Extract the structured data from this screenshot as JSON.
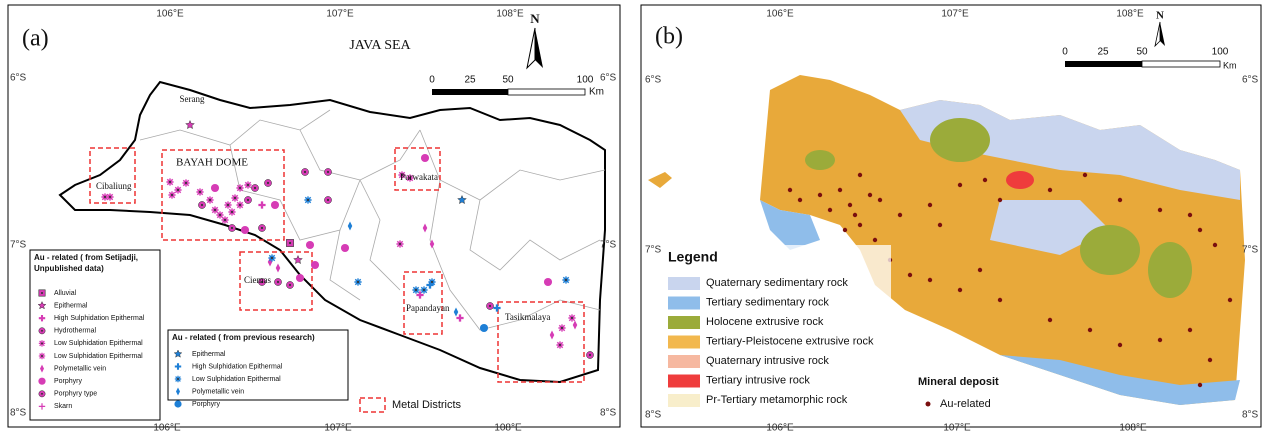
{
  "panel_a": {
    "label": "(a)",
    "sea_label": "JAVA SEA",
    "north": "N",
    "scale": {
      "ticks": [
        "0",
        "25",
        "50",
        "100"
      ],
      "unit": "Km"
    },
    "lon_top": [
      "106°E",
      "107°E",
      "108°E"
    ],
    "lon_bottom": [
      "106°E",
      "107°E",
      "108°E"
    ],
    "lat_left": [
      "6°S",
      "7°S",
      "8°S"
    ],
    "lat_right": [
      "6°S",
      "7°S",
      "8°S"
    ],
    "places": [
      "Serang",
      "BAYAH DOME",
      "Cibaliung",
      "Ciemas",
      "Purwakata",
      "Papandayan",
      "Tasikmalaya"
    ],
    "legend_setijadji": {
      "title": [
        "Au - related ( from Setijadji,",
        "Unpublished data)"
      ],
      "items": [
        "Alluvial",
        "Epithermal",
        "High Sulphidation Epithermal",
        "Hydrothermal",
        "Low Sulphidation Epithermal",
        "Low Sulphidation Epithermal",
        "Polymetallic vein",
        "Porphyry",
        "Porphyry type",
        "Skarn"
      ]
    },
    "legend_previous": {
      "title": "Au - related ( from previous research)",
      "items": [
        "Epithermal",
        "High Sulphidation Epithermal",
        "Low Sulphidation Epithermal",
        "Polymetallic vein",
        "Porphyry"
      ]
    },
    "districts_label": "Metal Districts"
  },
  "panel_b": {
    "label": "(b)",
    "north": "N",
    "scale": {
      "ticks": [
        "0",
        "25",
        "50",
        "100"
      ],
      "unit": "Km"
    },
    "lon_top": [
      "106°E",
      "107°E",
      "108°E"
    ],
    "lon_bottom": [
      "106°E",
      "107°E",
      "108°E"
    ],
    "lat_left": [
      "6°S",
      "7°S",
      "8°S"
    ],
    "lat_right": [
      "6°S",
      "7°S",
      "8°S"
    ],
    "legend_title": "Legend",
    "legend_items": [
      "Quaternary sedimentary rock",
      "Tertiary sedimentary rock",
      "Holocene extrusive rock",
      "Tertiary-Pleistocene extrusive rock",
      "Quaternary intrusive rock",
      "Tertiary intrusive rock",
      "Pr-Tertiary metamorphic rock"
    ],
    "deposit_title": "Mineral deposit",
    "deposit_item": "Au-related"
  }
}
